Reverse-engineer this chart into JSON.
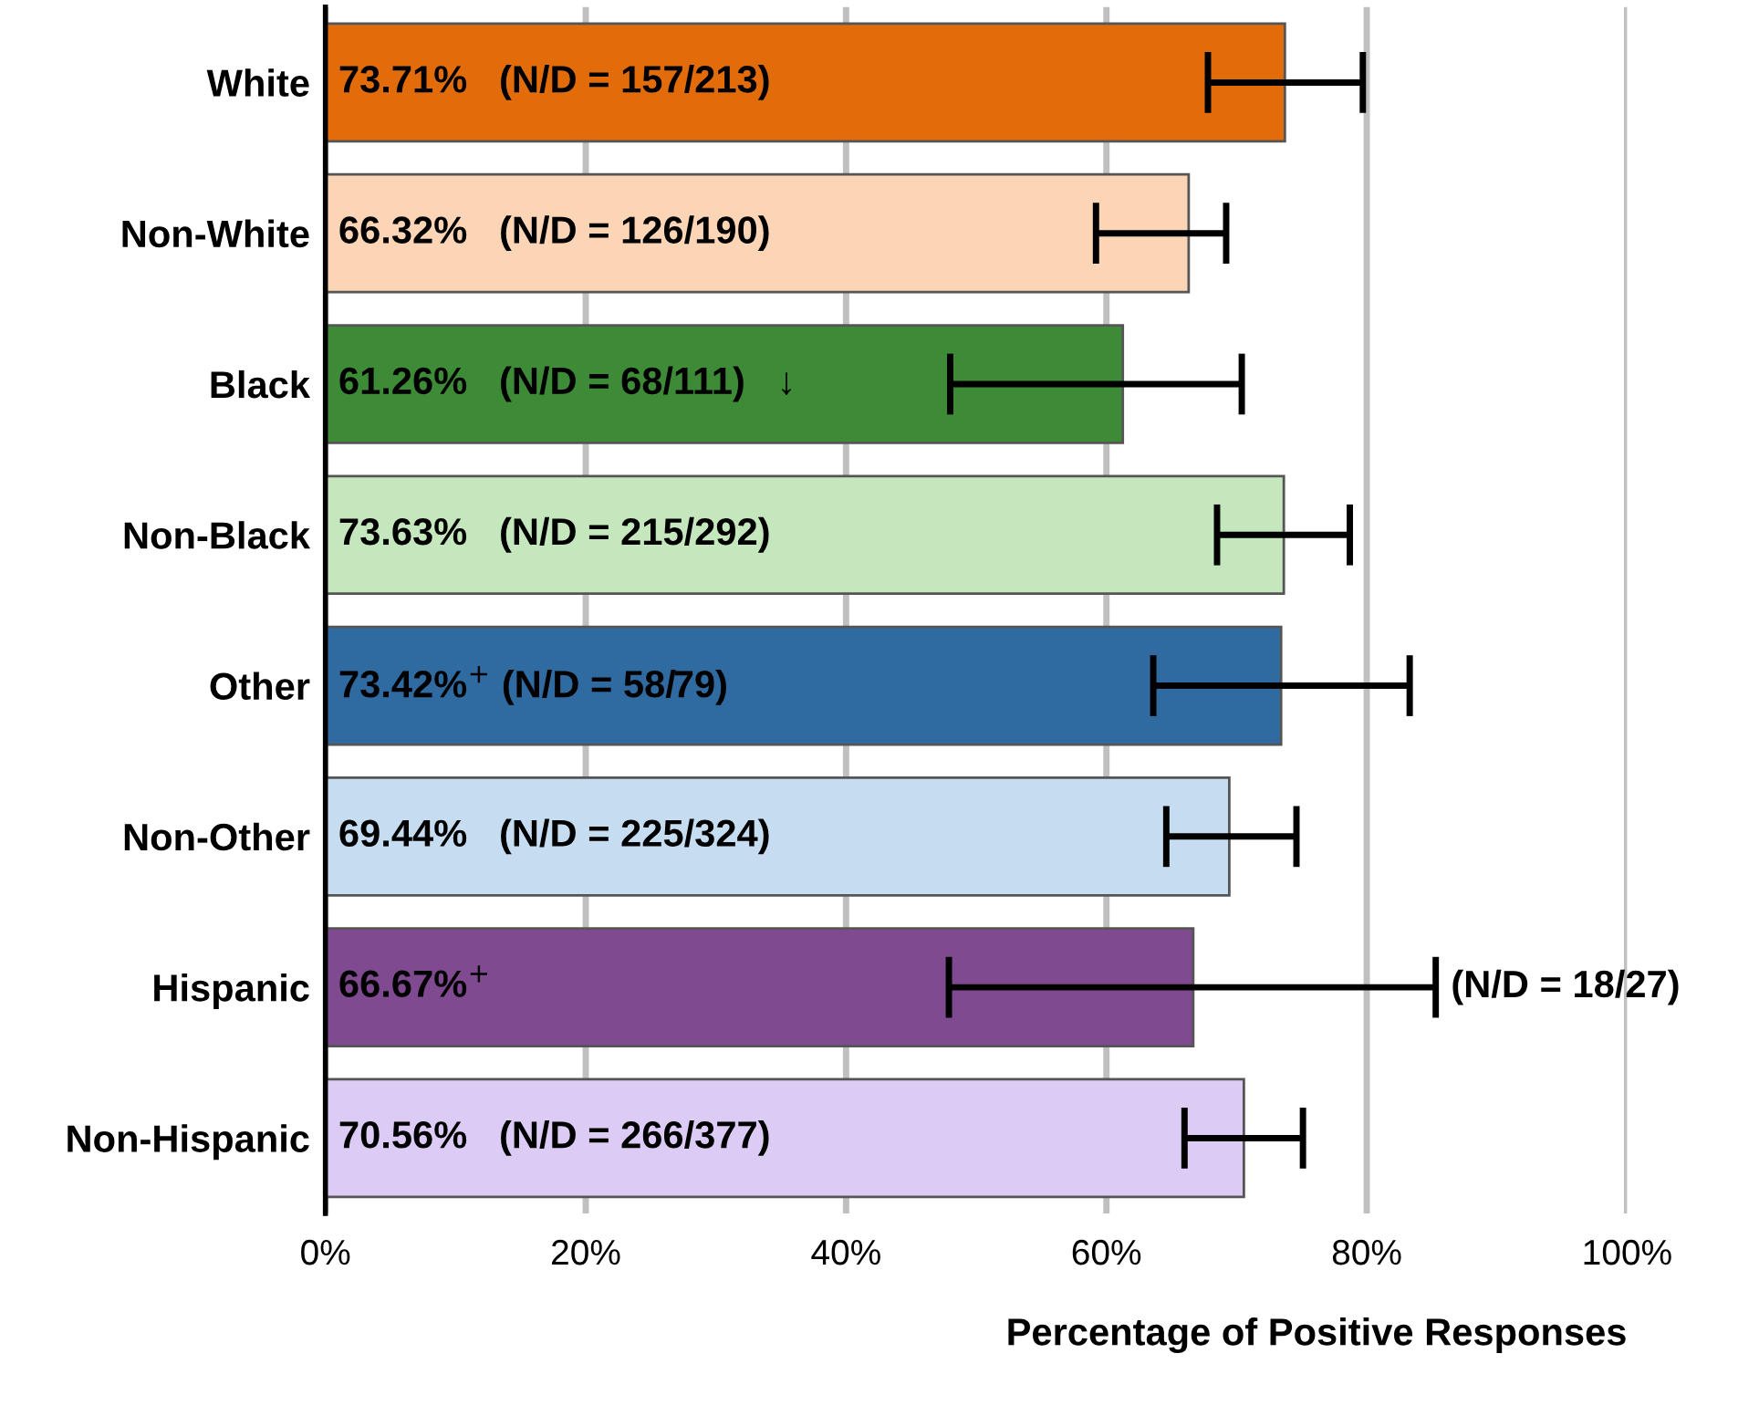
{
  "chart_data": {
    "type": "bar",
    "orientation": "horizontal",
    "xlabel": "Percentage of Positive Responses",
    "categories": [
      "White",
      "Non-White",
      "Black",
      "Non-Black",
      "Other",
      "Non-Other",
      "Hispanic",
      "Non-Hispanic"
    ],
    "values": [
      73.71,
      66.32,
      61.26,
      73.63,
      73.42,
      69.44,
      66.67,
      70.56
    ],
    "colors": [
      "#e36c0a",
      "#fbd5b5",
      "#3d8b37",
      "#c4e7bd",
      "#2f6aa1",
      "#c6dcf0",
      "#7f4a90",
      "#dccbf5"
    ],
    "errors": [
      [
        67.8,
        79.7
      ],
      [
        59.2,
        69.2
      ],
      [
        48.0,
        70.4
      ],
      [
        68.5,
        78.7
      ],
      [
        63.6,
        83.3
      ],
      [
        64.6,
        74.6
      ],
      [
        47.9,
        85.3
      ],
      [
        66.0,
        75.1
      ]
    ],
    "value_labels": [
      "73.71%   (N/D = 157/213)",
      "66.32%   (N/D = 126/190)",
      "61.26%   (N/D = 68/111)   ↓",
      "73.63%   (N/D = 215/292)",
      "73.42%$^{+}$ (N/D = 58/79)",
      "69.44%   (N/D = 225/324)",
      "66.67%$^{+}$",
      "70.56%   (N/D = 266/377)"
    ],
    "annotations": [
      {
        "text": "(N/D = 18/27)",
        "x": 85.3,
        "y": "Hispanic"
      }
    ],
    "xlim": [
      0,
      100
    ],
    "xticks": [
      {
        "value": 0,
        "label": "0%"
      },
      {
        "value": 20,
        "label": "20%"
      },
      {
        "value": 40,
        "label": "40%"
      },
      {
        "value": 60,
        "label": "60%"
      },
      {
        "value": 80,
        "label": "80%"
      },
      {
        "value": 100,
        "label": "100%"
      }
    ],
    "grid": "x",
    "legend": false
  }
}
